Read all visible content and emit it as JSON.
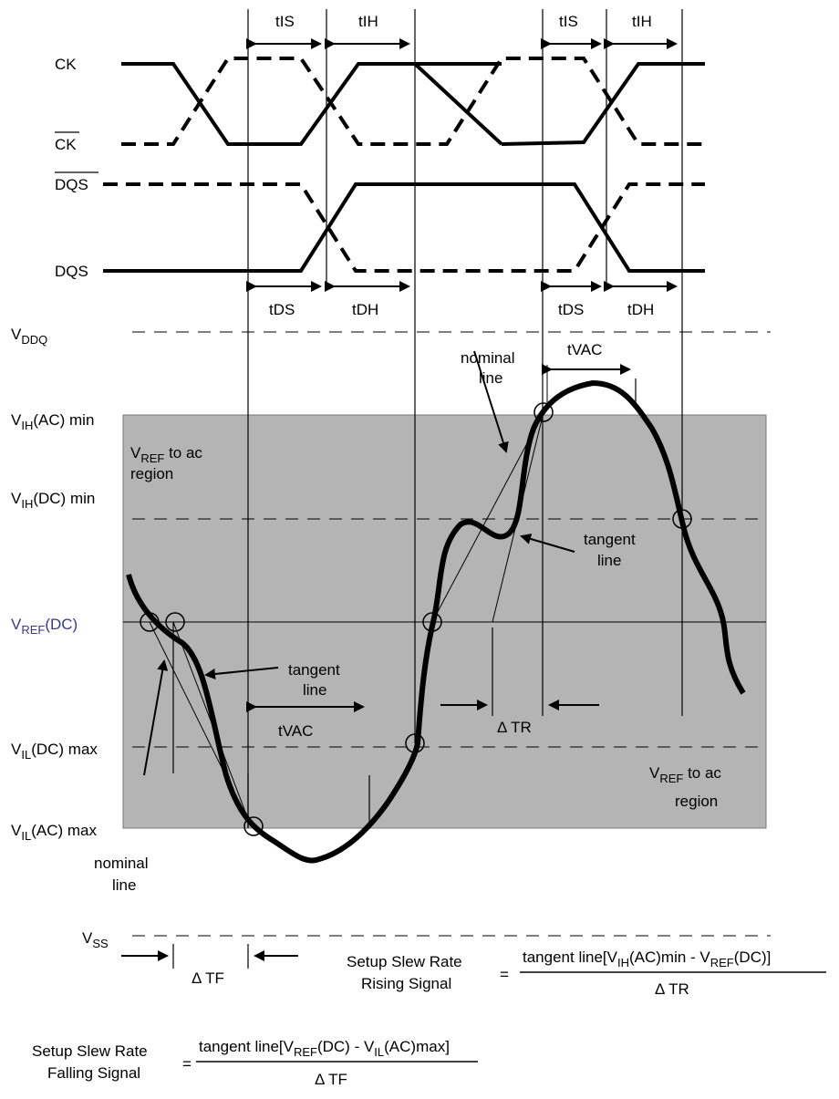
{
  "signals": {
    "ck": "CK",
    "ck_bar": "CK",
    "dqs_bar": "DQS",
    "dqs": "DQS"
  },
  "timing": {
    "tis": "tIS",
    "tih": "tIH",
    "tds": "tDS",
    "tdh": "tDH",
    "tvac": "tVAC",
    "delta_tr": "Δ TR",
    "delta_tf": "Δ TF"
  },
  "levels": {
    "vddq": {
      "main": "V",
      "sub": "DDQ"
    },
    "vih_ac": {
      "main": "V",
      "sub": "IH",
      "rest": "(AC) min"
    },
    "vih_dc": {
      "main": "V",
      "sub": "IH",
      "rest": "(DC) min"
    },
    "vref_dc": {
      "main": "V",
      "sub": "REF",
      "rest": "(DC)"
    },
    "vil_dc": {
      "main": "V",
      "sub": "IL",
      "rest": "(DC) max"
    },
    "vil_ac": {
      "main": "V",
      "sub": "IL",
      "rest": "(AC) max"
    },
    "vss": {
      "main": "V",
      "sub": "SS"
    }
  },
  "annotations": {
    "vref_ac_top": {
      "l1a": "V",
      "l1sub": "REF",
      "l1b": " to ac",
      "l2": "region"
    },
    "vref_ac_bottom": {
      "l1a": "V",
      "l1sub": "REF",
      "l1b": " to ac",
      "l2": "region"
    },
    "nominal_line": {
      "l1": "nominal",
      "l2": "line"
    },
    "tangent_line": {
      "l1": "tangent",
      "l2": "line"
    }
  },
  "formulas": {
    "rising": {
      "label1": "Setup Slew Rate",
      "label2": "Rising Signal",
      "eq": "=",
      "num_a": "tangent line[V",
      "num_sub1": "IH",
      "num_b": "(AC)min - V",
      "num_sub2": "REF",
      "num_c": "(DC)]",
      "den": "Δ TR"
    },
    "falling": {
      "label1": "Setup Slew Rate",
      "label2": "Falling Signal",
      "eq": "=",
      "num_a": "tangent line[V",
      "num_sub1": "REF",
      "num_b": "(DC) - V",
      "num_sub2": "IL",
      "num_c": "(AC)max]",
      "den": "Δ TF"
    }
  },
  "colors": {
    "region_fill": "#b4b4b4",
    "vref_label": "#3a3a8c",
    "line": "#000000"
  }
}
